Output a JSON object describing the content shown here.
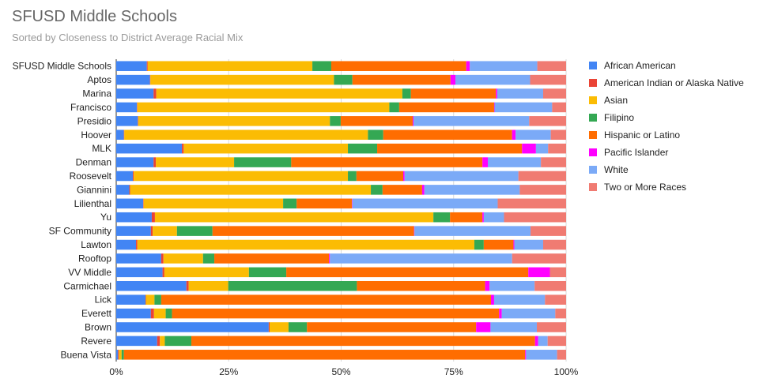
{
  "chart_data": {
    "type": "bar",
    "orientation": "horizontal",
    "stacked": "percent",
    "title": "SFUSD Middle Schools",
    "subtitle": "Sorted by Closeness to District Average Racial Mix",
    "xlabel": "",
    "ylabel": "",
    "xlim": [
      0,
      100
    ],
    "x_ticks": [
      "0%",
      "25%",
      "50%",
      "75%",
      "100%"
    ],
    "grid": "vertical",
    "legend_position": "right",
    "categories": [
      "SFUSD Middle Schools",
      "Aptos",
      "Marina",
      "Francisco",
      "Presidio",
      "Hoover",
      "MLK",
      "Denman",
      "Roosevelt",
      "Giannini",
      "Lilienthal",
      "Yu",
      "SF Community",
      "Lawton",
      "Rooftop",
      "VV Middle",
      "Carmichael",
      "Lick",
      "Everett",
      "Brown",
      "Revere",
      "Buena Vista"
    ],
    "series": [
      {
        "name": "African American",
        "color": "#4285f4",
        "values": [
          6.8,
          7.5,
          8.3,
          4.6,
          4.8,
          1.7,
          14.6,
          8.3,
          3.7,
          2.9,
          6.0,
          7.9,
          7.7,
          4.4,
          10.0,
          10.3,
          15.6,
          6.5,
          7.7,
          33.9,
          9.1,
          0.4
        ]
      },
      {
        "name": "American Indian or Alaska Native",
        "color": "#ea4335",
        "values": [
          0.2,
          0.1,
          0.6,
          0.1,
          0.1,
          0.1,
          0.4,
          0.5,
          0.2,
          0.2,
          0.1,
          0.7,
          0.4,
          0.3,
          0.5,
          0.4,
          0.5,
          0.1,
          0.7,
          0.2,
          0.6,
          0.2
        ]
      },
      {
        "name": "Asian",
        "color": "#fbbc04",
        "values": [
          36.6,
          40.8,
          54.7,
          56.0,
          42.6,
          54.1,
          36.5,
          17.4,
          47.6,
          53.5,
          31.0,
          61.9,
          5.4,
          74.9,
          8.8,
          18.8,
          8.8,
          1.9,
          2.6,
          4.2,
          1.1,
          0.6
        ]
      },
      {
        "name": "Filipino",
        "color": "#34a853",
        "values": [
          4.2,
          4.1,
          1.9,
          2.2,
          2.4,
          3.4,
          6.5,
          12.7,
          1.9,
          2.6,
          3.0,
          3.7,
          7.9,
          2.1,
          2.5,
          8.3,
          28.6,
          1.5,
          1.4,
          4.1,
          5.9,
          0.5
        ]
      },
      {
        "name": "Hispanic or Latino",
        "color": "#ff6d01",
        "values": [
          30.0,
          21.8,
          18.9,
          21.1,
          16.0,
          28.6,
          32.2,
          42.5,
          10.4,
          8.8,
          12.3,
          7.2,
          44.8,
          6.6,
          25.5,
          53.8,
          28.5,
          73.3,
          72.7,
          37.6,
          76.4,
          89.2
        ]
      },
      {
        "name": "Pacific Islander",
        "color": "#ff00ff",
        "values": [
          0.8,
          1.1,
          0.3,
          0.1,
          0.2,
          0.8,
          3.1,
          1.2,
          0.3,
          0.5,
          0.1,
          0.3,
          0.1,
          0.2,
          0.2,
          4.8,
          1.0,
          0.7,
          0.6,
          3.2,
          0.7,
          0.2
        ]
      },
      {
        "name": "White",
        "color": "#7baaf7",
        "values": [
          15.0,
          16.6,
          10.2,
          12.8,
          25.7,
          7.8,
          2.7,
          11.8,
          25.3,
          21.2,
          32.3,
          4.5,
          25.8,
          6.4,
          40.5,
          0,
          10.0,
          11.3,
          11.9,
          10.3,
          2.1,
          6.9
        ]
      },
      {
        "name": "Two or More Races",
        "color": "#f07b72",
        "values": [
          6.4,
          8.0,
          5.1,
          3.1,
          8.2,
          3.4,
          4.0,
          5.6,
          10.6,
          10.3,
          15.2,
          13.8,
          7.9,
          5.1,
          12.0,
          3.6,
          7.0,
          4.7,
          2.4,
          6.5,
          4.1,
          2.0
        ]
      }
    ]
  }
}
